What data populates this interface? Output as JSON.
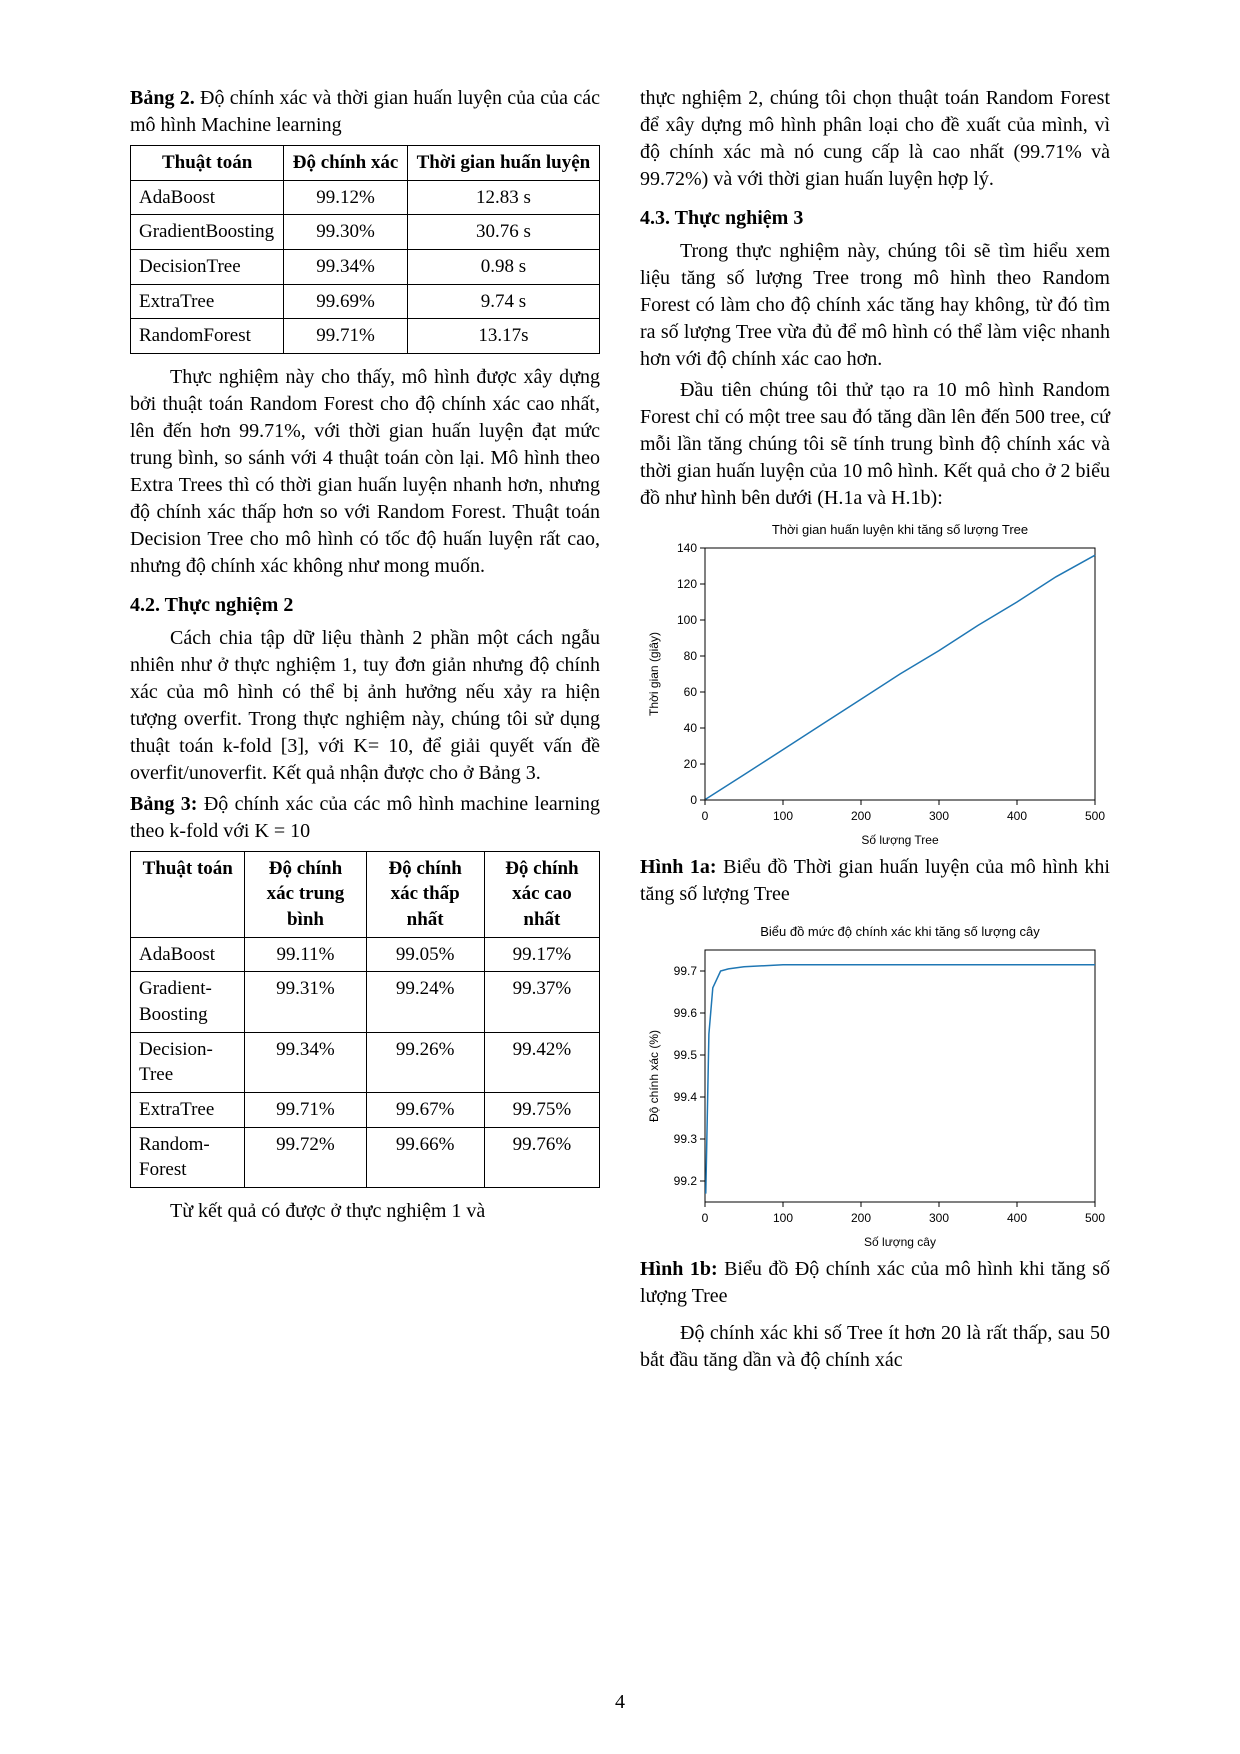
{
  "page_number": "4",
  "left": {
    "table2_caption_bold": "Bảng 2.",
    "table2_caption_rest": " Độ chính xác và thời gian huấn luyện của của các mô hình Machine learning",
    "table2": {
      "headers": [
        "Thuật toán",
        "Độ chính xác",
        "Thời gian huấn luyện"
      ],
      "rows": [
        [
          "AdaBoost",
          "99.12%",
          "12.83 s"
        ],
        [
          "GradientBoosting",
          "99.30%",
          "30.76 s"
        ],
        [
          "DecisionTree",
          "99.34%",
          "0.98 s"
        ],
        [
          "ExtraTree",
          "99.69%",
          "9.74 s"
        ],
        [
          "RandomForest",
          "99.71%",
          "13.17s"
        ]
      ]
    },
    "para1": "Thực nghiệm này cho thấy, mô hình được xây dựng bởi thuật toán Random Forest cho độ chính xác cao nhất, lên đến hơn 99.71%, với thời gian huấn luyện đạt mức trung bình, so sánh với 4 thuật toán còn lại. Mô hình theo Extra Trees thì có thời gian huấn luyện nhanh hơn, nhưng độ chính xác thấp hơn so với Random Forest. Thuật toán Decision Tree cho mô hình có tốc độ huấn luyện rất cao, nhưng độ chính xác không như mong muốn.",
    "heading42": "4.2. Thực nghiệm 2",
    "para2": "Cách chia tập dữ liệu thành 2 phần một cách ngẫu nhiên như ở thực nghiệm 1, tuy đơn giản nhưng độ chính xác của mô hình có thể bị ảnh hưởng nếu xảy ra hiện tượng overfit. Trong thực nghiệm này, chúng tôi sử dụng thuật toán k-fold [3], với K= 10, để giải quyết vấn đề overfit/unoverfit. Kết quả nhận được cho ở Bảng 3.",
    "table3_caption_bold": "Bảng 3:",
    "table3_caption_rest": " Độ chính xác của các mô hình machine learning theo k-fold với K = 10",
    "table3": {
      "headers": [
        "Thuật toán",
        "Độ chính xác trung bình",
        "Độ chính xác thấp nhất",
        "Độ chính xác cao nhất"
      ],
      "rows": [
        [
          "AdaBoost",
          "99.11%",
          "99.05%",
          "99.17%"
        ],
        [
          "Gradient-Boosting",
          "99.31%",
          "99.24%",
          "99.37%"
        ],
        [
          "Decision-Tree",
          "99.34%",
          "99.26%",
          "99.42%"
        ],
        [
          "ExtraTree",
          "99.71%",
          "99.67%",
          "99.75%"
        ],
        [
          "Random-Forest",
          "99.72%",
          "99.66%",
          "99.76%"
        ]
      ]
    },
    "para3": "Từ kết quả có được ở thực nghiệm 1 và"
  },
  "right": {
    "para1": "thực nghiệm 2, chúng tôi chọn thuật toán Random Forest để xây dựng mô hình phân loại cho đề xuất của mình, vì độ chính xác mà nó cung cấp là cao nhất (99.71% và 99.72%) và với thời gian huấn luyện hợp lý.",
    "heading43": "4.3. Thực nghiệm 3",
    "para2": "Trong thực nghiệm này, chúng tôi sẽ tìm hiểu xem liệu tăng số lượng Tree trong mô hình theo Random Forest có làm cho độ chính xác tăng hay không, từ đó tìm ra số lượng Tree vừa đủ để mô hình có thể làm việc nhanh hơn với độ chính xác cao hơn.",
    "para3": "Đầu tiên chúng tôi thử tạo ra 10 mô hình Random Forest chỉ có một tree sau đó tăng dần lên đến 500 tree, cứ mỗi lần tăng chúng tôi sẽ tính trung bình độ chính xác và thời gian huấn luyện của 10 mô hình. Kết quả cho ở 2 biểu đồ như hình bên dưới (H.1a và H.1b):",
    "chart1a": {
      "type": "line",
      "title": "Thời gian huấn luyện khi tăng số lượng Tree",
      "title_fontsize": 13,
      "xlabel": "Số lượng Tree",
      "ylabel": "Thời gian (giây)",
      "label_fontsize": 12,
      "xlim": [
        0,
        500
      ],
      "ylim": [
        0,
        140
      ],
      "xticks": [
        0,
        100,
        200,
        300,
        400,
        500
      ],
      "yticks": [
        0,
        20,
        40,
        60,
        80,
        100,
        120,
        140
      ],
      "x": [
        1,
        50,
        100,
        150,
        200,
        250,
        300,
        350,
        400,
        450,
        500
      ],
      "y": [
        0.5,
        14,
        28,
        42,
        56,
        70,
        83,
        97,
        110,
        124,
        136
      ],
      "line_color": "#1f77b4",
      "line_width": 1.5,
      "background_color": "#ffffff",
      "border_color": "#000000",
      "tick_color": "#000000"
    },
    "fig1a_caption_bold": "Hình 1a:",
    "fig1a_caption_rest": " Biểu đồ Thời gian huấn luyện của mô hình khi tăng số lượng Tree",
    "chart1b": {
      "type": "line",
      "title": "Biểu đồ mức độ chính xác khi tăng số lượng cây",
      "title_fontsize": 13,
      "xlabel": "Số lượng cây",
      "ylabel": "Độ chính xác (%)",
      "label_fontsize": 12,
      "xlim": [
        0,
        500
      ],
      "ylim": [
        99.15,
        99.75
      ],
      "xticks": [
        0,
        100,
        200,
        300,
        400,
        500
      ],
      "yticks": [
        99.2,
        99.3,
        99.4,
        99.5,
        99.6,
        99.7
      ],
      "x": [
        1,
        5,
        10,
        20,
        30,
        50,
        100,
        200,
        300,
        400,
        500
      ],
      "y": [
        99.17,
        99.55,
        99.66,
        99.7,
        99.705,
        99.71,
        99.715,
        99.715,
        99.715,
        99.715,
        99.715
      ],
      "line_color": "#1f77b4",
      "line_width": 1.5,
      "background_color": "#ffffff",
      "border_color": "#000000",
      "tick_color": "#000000"
    },
    "fig1b_caption_bold": "Hình 1b:",
    "fig1b_caption_rest": " Biểu đồ Độ chính xác của mô hình khi tăng số lượng Tree",
    "para4": "Độ chính xác khi số Tree ít hơn 20 là rất thấp, sau 50 bắt đầu tăng dần và độ chính xác"
  }
}
